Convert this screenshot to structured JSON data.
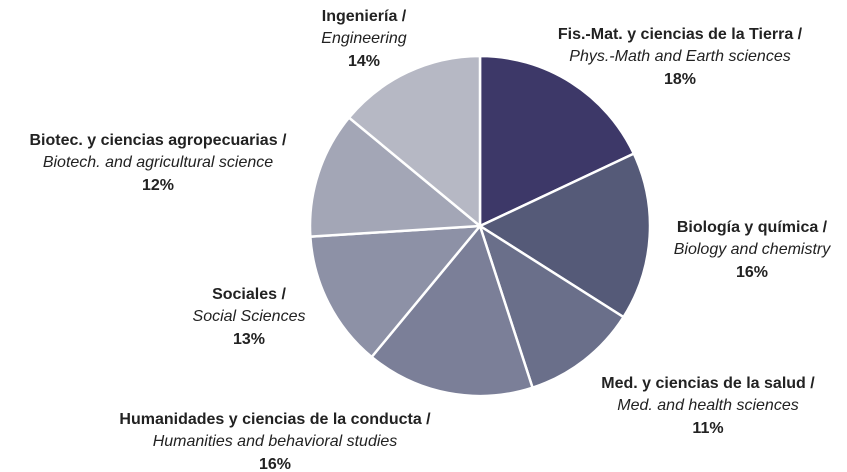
{
  "chart_data": {
    "type": "pie",
    "categories": [
      "Fis.-Mat. y ciencias de la Tierra /",
      "Biología y química /",
      "Med. y ciencias de la salud /",
      "Humanidades y ciencias de la conducta /",
      "Sociales /",
      "Biotec. y ciencias agropecuarias /",
      "Ingeniería /"
    ],
    "category_translations": [
      "Phys.-Math and Earth sciences",
      "Biology and chemistry",
      "Med. and health sciences",
      "Humanities and behavioral studies",
      "Social Sciences",
      "Biotech. and agricultural science",
      "Engineering"
    ],
    "values": [
      18,
      16,
      11,
      16,
      13,
      12,
      14
    ],
    "value_labels": [
      "18%",
      "16%",
      "11%",
      "16%",
      "13%",
      "12%",
      "14%"
    ],
    "colors": [
      "#3d3868",
      "#555a78",
      "#6a6f8a",
      "#7b7f98",
      "#8d91a6",
      "#a3a6b6",
      "#b6b8c4"
    ]
  }
}
